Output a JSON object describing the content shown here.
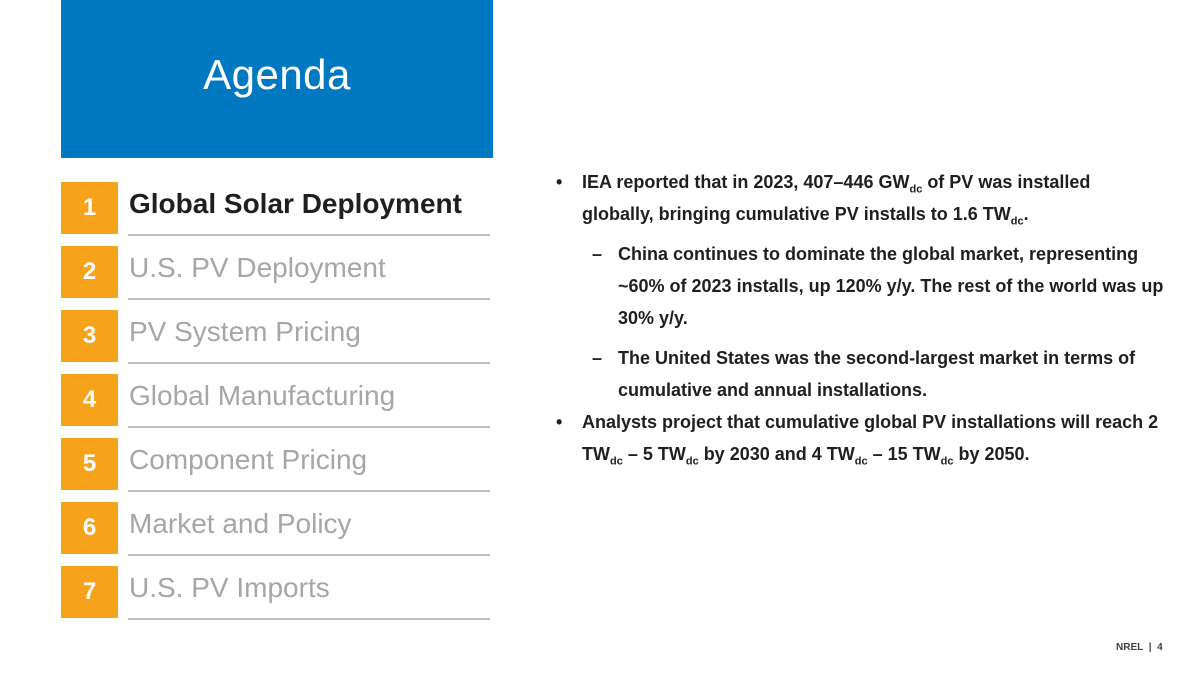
{
  "title": "Agenda",
  "agenda": [
    {
      "number": "1",
      "label": "Global Solar Deployment"
    },
    {
      "number": "2",
      "label": "U.S. PV Deployment"
    },
    {
      "number": "3",
      "label": "PV System Pricing"
    },
    {
      "number": "4",
      "label": "Global Manufacturing"
    },
    {
      "number": "5",
      "label": "Component Pricing"
    },
    {
      "number": "6",
      "label": "Market and Policy"
    },
    {
      "number": "7",
      "label": "U.S. PV Imports"
    }
  ],
  "bullets": {
    "b1": {
      "part1": "IEA reported that in 2023, 407–446 GW",
      "sub1": "dc",
      "part2": " of PV was installed globally, bringing cumulative PV installs to 1.6 TW",
      "sub2": "dc",
      "part3": "."
    },
    "sub1": "China continues to dominate the global market, representing ~60% of 2023 installs, up 120% y/y. The rest of the world was up 30% y/y.",
    "sub2": "The United States was the second-largest market in terms of cumulative and annual installations.",
    "b2": {
      "part1": "Analysts project that cumulative global PV installations will reach 2 TW",
      "sub1": "dc",
      "part2": " – 5 TW",
      "sub2": "dc",
      "part3": " by 2030 and 4 TW",
      "sub3": "dc",
      "part4": " – 15 TW",
      "sub4": "dc",
      "part5": " by 2050."
    },
    "bullet_symbol": "•",
    "dash_symbol": "–"
  },
  "footer": {
    "org": "NREL",
    "separator": "|",
    "page": "4"
  },
  "colors": {
    "title_band": "#0079c1",
    "number_box": "#f7a21b",
    "active_text": "#1f1f1f",
    "inactive_text": "#a6a6a6"
  }
}
